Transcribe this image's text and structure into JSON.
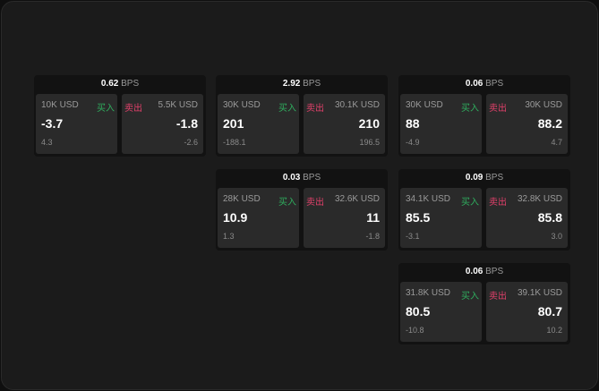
{
  "unit": "BPS",
  "buy_label": "买入",
  "sell_label": "卖出",
  "colors": {
    "buy": "#2fae5e",
    "sell": "#e0406a"
  },
  "cards": [
    {
      "spread": "0.62",
      "buy": {
        "size": "10K USD",
        "price": "-3.7",
        "change": "4.3"
      },
      "sell": {
        "size": "5.5K USD",
        "price": "-1.8",
        "change": "-2.6"
      }
    },
    {
      "spread": "2.92",
      "buy": {
        "size": "30K USD",
        "price": "201",
        "change": "-188.1"
      },
      "sell": {
        "size": "30.1K USD",
        "price": "210",
        "change": "196.5"
      }
    },
    {
      "spread": "0.06",
      "buy": {
        "size": "30K USD",
        "price": "88",
        "change": "-4.9"
      },
      "sell": {
        "size": "30K USD",
        "price": "88.2",
        "change": "4.7"
      }
    },
    {
      "spread": "0.03",
      "buy": {
        "size": "28K USD",
        "price": "10.9",
        "change": "1.3"
      },
      "sell": {
        "size": "32.6K USD",
        "price": "11",
        "change": "-1.8"
      }
    },
    {
      "spread": "0.09",
      "buy": {
        "size": "34.1K USD",
        "price": "85.5",
        "change": "-3.1"
      },
      "sell": {
        "size": "32.8K USD",
        "price": "85.8",
        "change": "3.0"
      }
    },
    {
      "spread": "0.06",
      "buy": {
        "size": "31.8K USD",
        "price": "80.5",
        "change": "-10.8"
      },
      "sell": {
        "size": "39.1K USD",
        "price": "80.7",
        "change": "10.2"
      }
    }
  ]
}
